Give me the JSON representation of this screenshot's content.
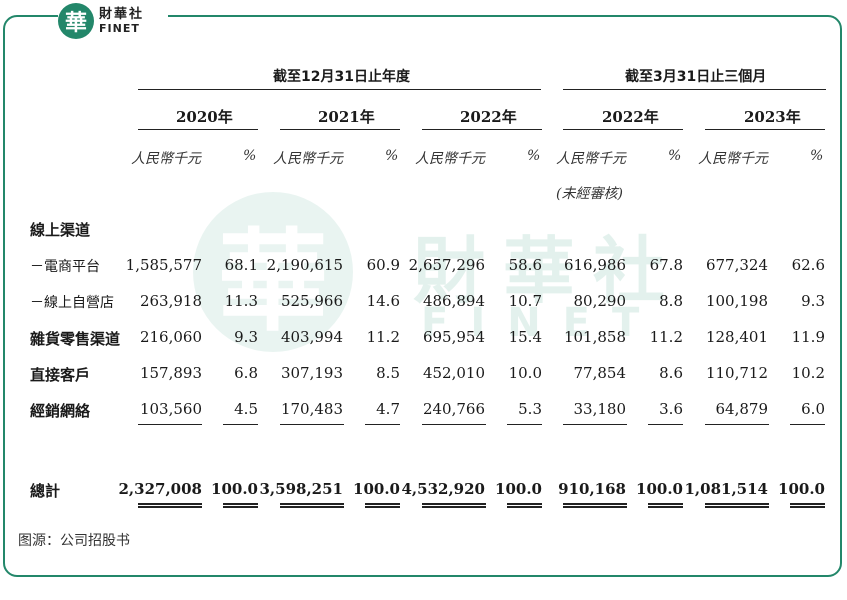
{
  "logo": {
    "seal_char": "華",
    "cn": "財華社",
    "en": "FINET"
  },
  "watermark": {
    "seal_char": "華",
    "cn": "財華社",
    "en": "FINET"
  },
  "headers": {
    "group1": "截至12月31日止年度",
    "group2": "截至3月31日止三個月",
    "years": [
      "2020年",
      "2021年",
      "2022年",
      "2022年",
      "2023年"
    ],
    "unit_amount": "人民幣千元",
    "unit_pct": "%",
    "unaudited": "(未經審核)"
  },
  "rows": [
    {
      "label": "線上渠道",
      "values": [],
      "style": "lab"
    },
    {
      "label": "－電商平台",
      "values": [
        "1,585,577",
        "68.1",
        "2,190,615",
        "60.9",
        "2,657,296",
        "58.6",
        "616,986",
        "67.8",
        "677,324",
        "62.6"
      ],
      "style": "sub"
    },
    {
      "label": "－線上自營店",
      "values": [
        "263,918",
        "11.3",
        "525,966",
        "14.6",
        "486,894",
        "10.7",
        "80,290",
        "8.8",
        "100,198",
        "9.3"
      ],
      "style": "sub"
    },
    {
      "label": "雜貨零售渠道",
      "values": [
        "216,060",
        "9.3",
        "403,994",
        "11.2",
        "695,954",
        "15.4",
        "101,858",
        "11.2",
        "128,401",
        "11.9"
      ],
      "style": "lab"
    },
    {
      "label": "直接客戶",
      "values": [
        "157,893",
        "6.8",
        "307,193",
        "8.5",
        "452,010",
        "10.0",
        "77,854",
        "8.6",
        "110,712",
        "10.2"
      ],
      "style": "lab"
    },
    {
      "label": "經銷網絡",
      "values": [
        "103,560",
        "4.5",
        "170,483",
        "4.7",
        "240,766",
        "5.3",
        "33,180",
        "3.6",
        "64,879",
        "6.0"
      ],
      "style": "lab"
    }
  ],
  "total": {
    "label": "總計",
    "values": [
      "2,327,008",
      "100.0",
      "3,598,251",
      "100.0",
      "4,532,920",
      "100.0",
      "910,168",
      "100.0",
      "1,081,514",
      "100.0"
    ]
  },
  "source": "图源：公司招股书"
}
